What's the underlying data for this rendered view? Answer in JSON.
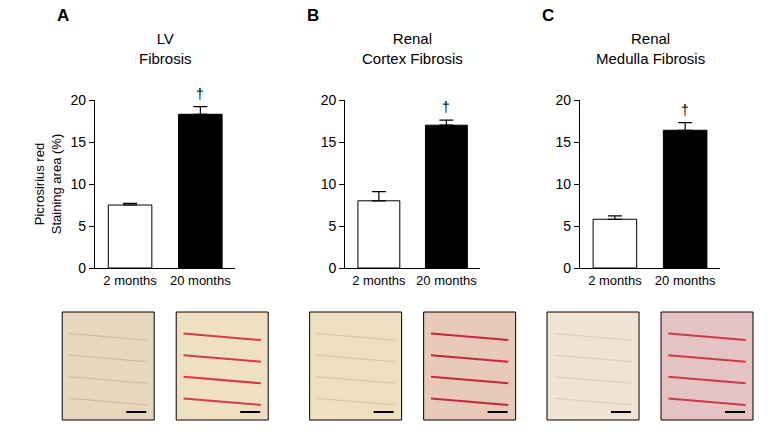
{
  "chart_data": [
    {
      "type": "bar",
      "panel": "A",
      "title": [
        "LV",
        "Fibrosis"
      ],
      "ylabel": [
        "Picrosirius red",
        "Staining area (%)"
      ],
      "categories": [
        "2 months",
        "20 months"
      ],
      "values": [
        7.5,
        18.3
      ],
      "errors": [
        0.2,
        0.9
      ],
      "colors": [
        "#ffffff",
        "#000000"
      ],
      "ylim": [
        0,
        20
      ],
      "yticks": [
        0,
        5,
        10,
        15,
        20
      ],
      "grid": false,
      "annotations": [
        {
          "category": "20 months",
          "text": "†"
        }
      ]
    },
    {
      "type": "bar",
      "panel": "B",
      "title": [
        "Renal",
        "Cortex Fibrosis"
      ],
      "categories": [
        "2 months",
        "20 months"
      ],
      "values": [
        8.0,
        17.0
      ],
      "errors": [
        1.1,
        0.6
      ],
      "colors": [
        "#ffffff",
        "#000000"
      ],
      "ylim": [
        0,
        20
      ],
      "yticks": [
        0,
        5,
        10,
        15,
        20
      ],
      "grid": false,
      "annotations": [
        {
          "category": "20 months",
          "text": "†"
        }
      ]
    },
    {
      "type": "bar",
      "panel": "C",
      "title": [
        "Renal",
        "Medulla Fibrosis"
      ],
      "categories": [
        "2 months",
        "20 months"
      ],
      "values": [
        5.8,
        16.4
      ],
      "errors": [
        0.4,
        0.9
      ],
      "colors": [
        "#ffffff",
        "#000000"
      ],
      "ylim": [
        0,
        20
      ],
      "yticks": [
        0,
        5,
        10,
        15,
        20
      ],
      "grid": false,
      "annotations": [
        {
          "category": "20 months",
          "text": "†"
        }
      ]
    }
  ]
}
